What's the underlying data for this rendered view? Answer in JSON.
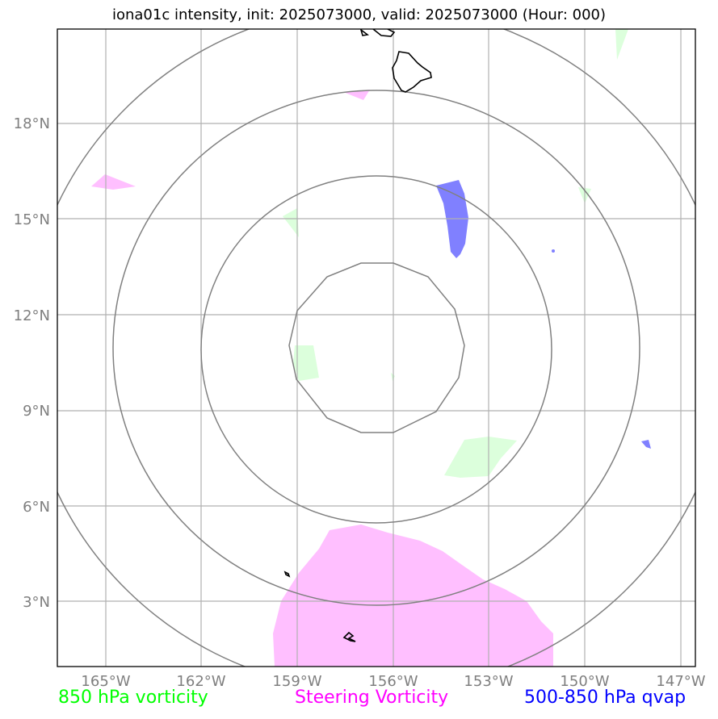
{
  "title": "iona01c intensity, init: 2025073000, valid: 2025073000 (Hour: 000)",
  "map": {
    "lat_ticks": [
      "18°N",
      "15°N",
      "12°N",
      "9°N",
      "6°N",
      "3°N"
    ],
    "lon_ticks": [
      "165°W",
      "162°W",
      "159°W",
      "156°W",
      "153°W",
      "150°W",
      "147°W"
    ],
    "grid": true,
    "range_rings": 4,
    "storm_center": {
      "lat": 11,
      "lon": -156
    }
  },
  "legend": [
    {
      "label": "850 hPa vorticity",
      "color": "#00ff00"
    },
    {
      "label": "Steering Vorticity",
      "color": "#ff00ff"
    },
    {
      "label": "500-850 hPa qvap",
      "color": "#0000ff"
    }
  ],
  "colors": {
    "vort850": "#dcffdc",
    "steering": "#ffbfff",
    "qvap": "#8080ff",
    "rings": "#808080",
    "grid": "#b0b0b0",
    "coast": "#000000"
  }
}
